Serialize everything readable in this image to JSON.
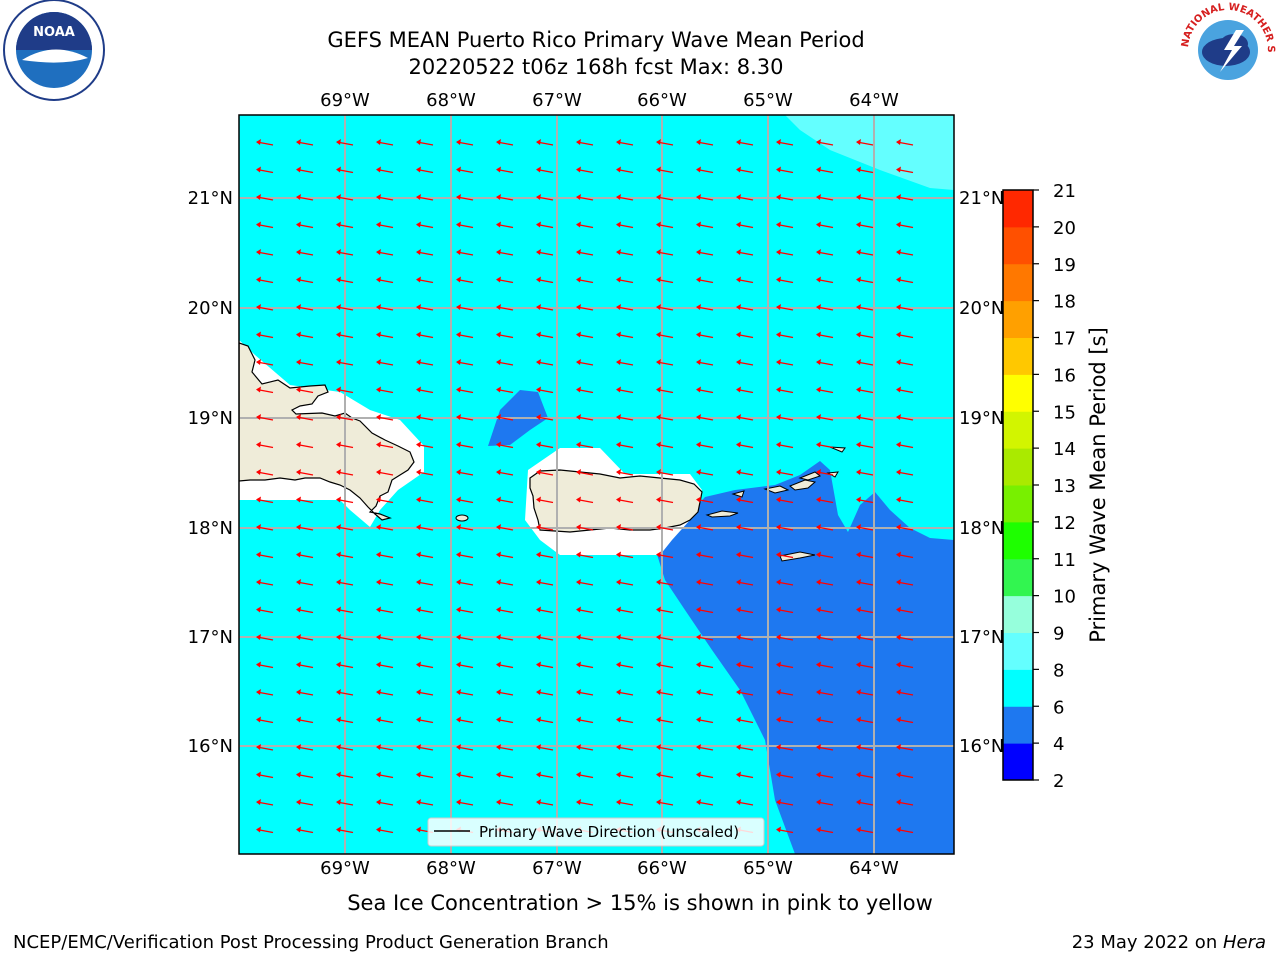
{
  "title": {
    "line1": "GEFS MEAN Puerto Rico Primary Wave Mean Period",
    "line2": "20220522 t06z 168h fcst   Max: 8.30"
  },
  "map": {
    "lon_labels": [
      "69°W",
      "68°W",
      "67°W",
      "66°W",
      "65°W",
      "64°W"
    ],
    "lat_labels": [
      "21°N",
      "20°N",
      "19°N",
      "18°N",
      "17°N",
      "16°N"
    ],
    "legend_label": "Primary Wave Direction (unscaled)"
  },
  "colorbar": {
    "label": "Primary Wave Mean Period [s]",
    "ticks": [
      "2",
      "4",
      "6",
      "8",
      "9",
      "10",
      "11",
      "12",
      "13",
      "14",
      "15",
      "16",
      "17",
      "18",
      "19",
      "20",
      "21"
    ],
    "colors": [
      "#0000ff",
      "#1e78f0",
      "#00ffff",
      "#64ffff",
      "#96ffdc",
      "#32f550",
      "#1eff00",
      "#78f000",
      "#aaea00",
      "#d2f500",
      "#ffff00",
      "#ffc800",
      "#ffa000",
      "#ff7800",
      "#ff5000",
      "#ff2800",
      "#ff0000"
    ]
  },
  "subtitle": "Sea Ice Concentration > 15% is shown in pink to yellow",
  "footer": {
    "credit": "NCEP/EMC/Verification Post Processing Product Generation Branch",
    "date_prefix": "23 May 2022 on ",
    "date_host": "Hera"
  },
  "logos": {
    "left": "noaa-logo",
    "right": "nws-logo",
    "noaa_text": "NOAA",
    "nws_text": "NATIONAL WEATHER SERVICE"
  },
  "colors": {
    "cyan": "#00ffff",
    "blue": "#1e78f0",
    "light_cyan": "#64ffff",
    "land": "#efecd9",
    "arrow": "#ff0000"
  }
}
